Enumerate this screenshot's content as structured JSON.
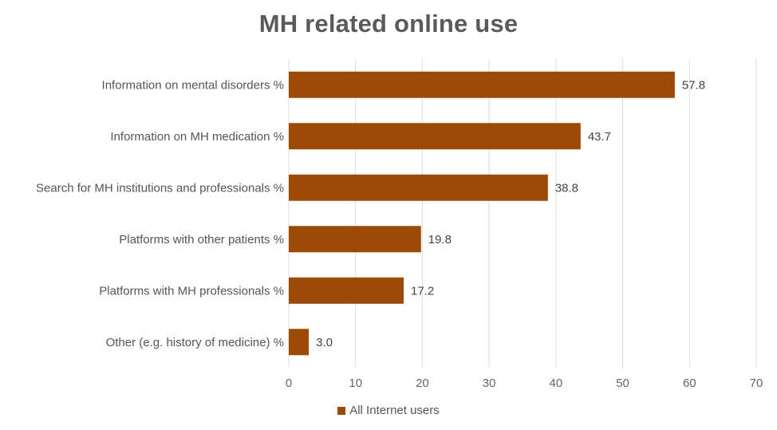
{
  "chart_data": {
    "type": "bar",
    "orientation": "horizontal",
    "title": "MH related online use",
    "categories": [
      "Information on mental disorders %",
      "Information on MH medication %",
      "Search for MH institutions and professionals %",
      "Platforms with other patients %",
      "Platforms with MH professionals %",
      "Other (e.g. history of medicine) %"
    ],
    "series": [
      {
        "name": "All Internet users",
        "values": [
          57.8,
          43.7,
          38.8,
          19.8,
          17.2,
          3.0
        ],
        "labels": [
          "57.8",
          "43.7",
          "38.8",
          "19.8",
          "17.2",
          "3.0"
        ],
        "color": "#9c4a06"
      }
    ],
    "xlim": [
      0,
      70
    ],
    "xticks": [
      0,
      10,
      20,
      30,
      40,
      50,
      60,
      70
    ],
    "xtick_labels": [
      "0",
      "10",
      "20",
      "30",
      "40",
      "50",
      "60",
      "70"
    ],
    "grid": true,
    "gridline_color": "#e2dcd6",
    "legend_position": "bottom"
  }
}
